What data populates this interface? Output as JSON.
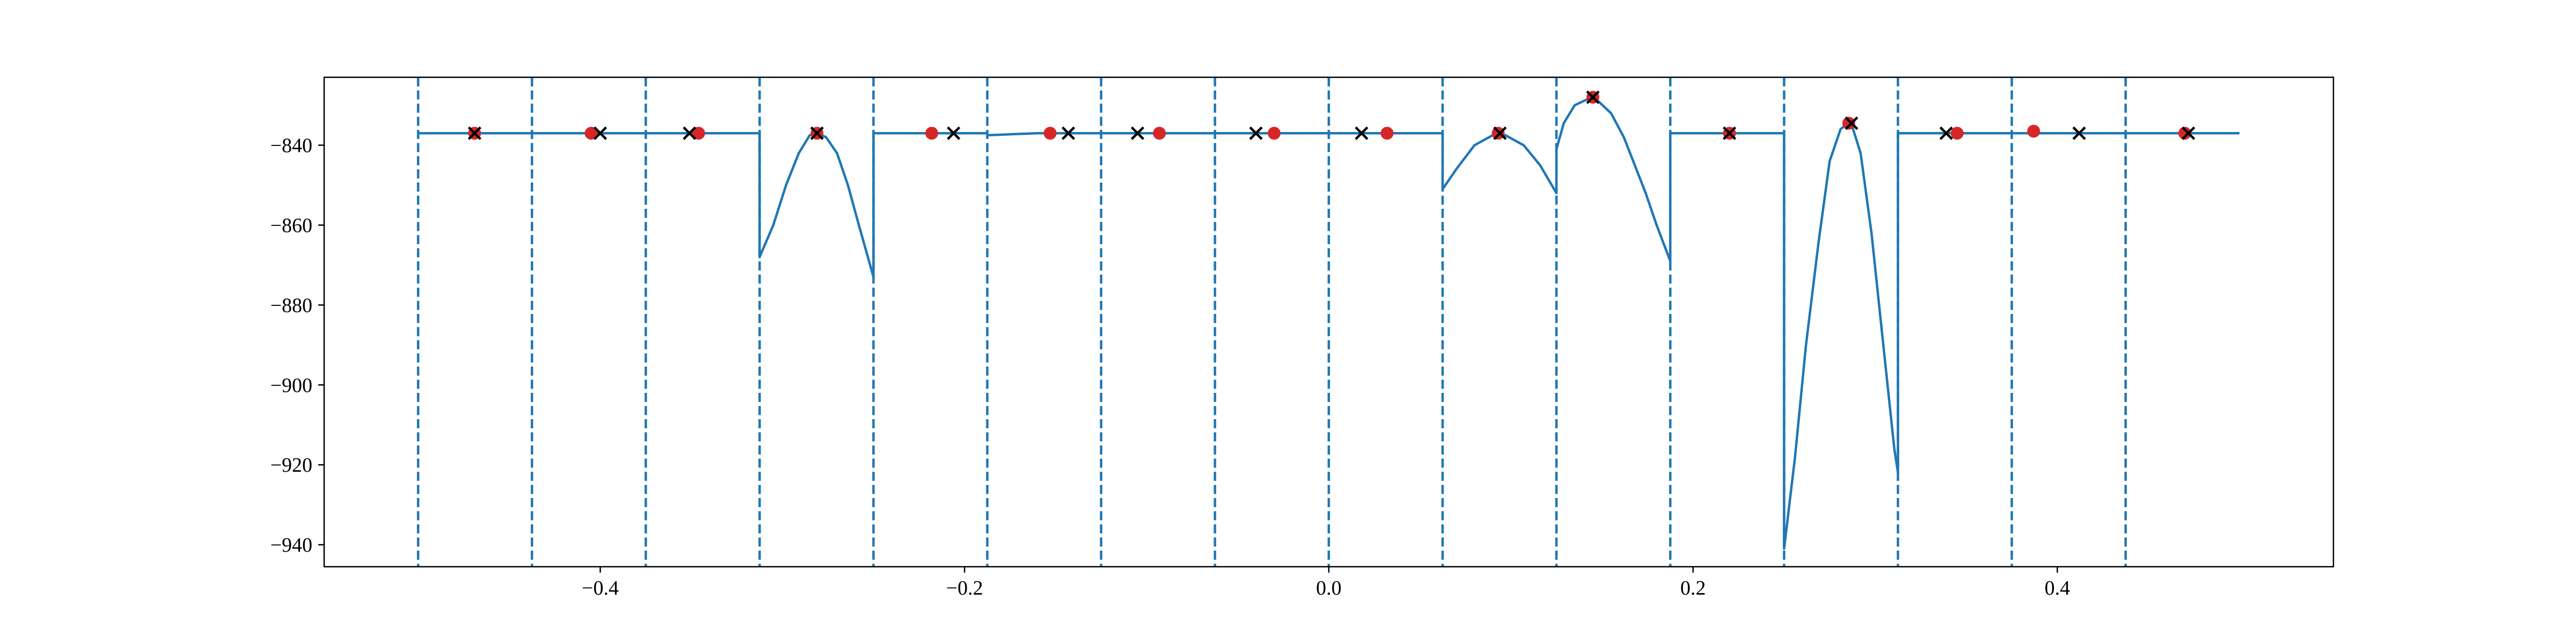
{
  "chart_data": {
    "type": "line",
    "title": "",
    "xlabel": "",
    "ylabel": "",
    "xlim": [
      -0.5516,
      0.5516
    ],
    "ylim": [
      -945.5,
      -823.0
    ],
    "x_ticks": [
      -0.4,
      -0.2,
      0.0,
      0.2,
      0.4
    ],
    "x_tick_labels": [
      "−0.4",
      "−0.2",
      "0.0",
      "0.2",
      "0.4"
    ],
    "y_ticks": [
      -840,
      -860,
      -880,
      -900,
      -920,
      -940
    ],
    "y_tick_labels": [
      "−840",
      "−860",
      "−880",
      "−900",
      "−920",
      "−940"
    ],
    "grid": false,
    "legend": "none",
    "colors": {
      "line": "#1f77b4",
      "red_points": "#d62728",
      "black_x": "#000000"
    },
    "boundaries": [
      -0.5,
      -0.4375,
      -0.375,
      -0.3125,
      -0.25,
      -0.1875,
      -0.125,
      -0.0625,
      0.0,
      0.0625,
      0.125,
      0.1875,
      0.25,
      0.3125,
      0.375,
      0.4375
    ],
    "series": [
      {
        "type": "line",
        "segments": [
          [
            [
              -0.5,
              -837
            ],
            [
              -0.4375,
              -837
            ]
          ],
          [
            [
              -0.4375,
              -837
            ],
            [
              -0.375,
              -837
            ]
          ],
          [
            [
              -0.375,
              -837
            ],
            [
              -0.3125,
              -837
            ]
          ],
          [
            [
              -0.3125,
              -868
            ],
            [
              -0.305,
              -860
            ],
            [
              -0.298,
              -850
            ],
            [
              -0.291,
              -842
            ],
            [
              -0.285,
              -837.5
            ],
            [
              -0.281,
              -837
            ],
            [
              -0.276,
              -838
            ],
            [
              -0.27,
              -842
            ],
            [
              -0.264,
              -850
            ],
            [
              -0.258,
              -860
            ],
            [
              -0.25,
              -873
            ]
          ],
          [
            [
              -0.25,
              -837
            ],
            [
              -0.1875,
              -837
            ]
          ],
          [
            [
              -0.1875,
              -837.5
            ],
            [
              -0.16,
              -837
            ],
            [
              -0.125,
              -837
            ]
          ],
          [
            [
              -0.125,
              -837
            ],
            [
              -0.0625,
              -837
            ]
          ],
          [
            [
              -0.0625,
              -837
            ],
            [
              0.0,
              -837
            ]
          ],
          [
            [
              0.0,
              -837
            ],
            [
              0.0625,
              -837
            ]
          ],
          [
            [
              0.0625,
              -851
            ],
            [
              0.07,
              -846
            ],
            [
              0.08,
              -840
            ],
            [
              0.09,
              -837.5
            ],
            [
              0.097,
              -837.5
            ],
            [
              0.107,
              -840
            ],
            [
              0.116,
              -845
            ],
            [
              0.125,
              -852
            ]
          ],
          [
            [
              0.125,
              -841
            ],
            [
              0.129,
              -834.5
            ],
            [
              0.135,
              -830
            ],
            [
              0.142,
              -828.5
            ],
            [
              0.148,
              -829
            ],
            [
              0.155,
              -832
            ],
            [
              0.162,
              -838
            ],
            [
              0.168,
              -845
            ],
            [
              0.174,
              -852
            ],
            [
              0.18,
              -860
            ],
            [
              0.185,
              -866
            ],
            [
              0.1875,
              -869
            ]
          ],
          [
            [
              0.1875,
              -837
            ],
            [
              0.25,
              -837
            ]
          ],
          [
            [
              0.25,
              -941
            ],
            [
              0.256,
              -918
            ],
            [
              0.262,
              -890
            ],
            [
              0.269,
              -864
            ],
            [
              0.275,
              -844
            ],
            [
              0.281,
              -836
            ],
            [
              0.2865,
              -834
            ],
            [
              0.292,
              -842
            ],
            [
              0.298,
              -862
            ],
            [
              0.304,
              -888
            ],
            [
              0.3105,
              -916
            ],
            [
              0.3125,
              -922
            ]
          ],
          [
            [
              0.3125,
              -837
            ],
            [
              0.375,
              -837
            ]
          ],
          [
            [
              0.375,
              -837
            ],
            [
              0.4375,
              -837
            ]
          ],
          [
            [
              0.4375,
              -837
            ],
            [
              0.5,
              -837
            ]
          ]
        ]
      },
      {
        "type": "scatter",
        "marker": "o",
        "points": [
          [
            -0.469,
            -837
          ],
          [
            -0.405,
            -837
          ],
          [
            -0.346,
            -837
          ],
          [
            -0.281,
            -837
          ],
          [
            -0.218,
            -837
          ],
          [
            -0.153,
            -837
          ],
          [
            -0.093,
            -837
          ],
          [
            -0.03,
            -837
          ],
          [
            0.032,
            -837
          ],
          [
            0.093,
            -837
          ],
          [
            0.145,
            -828
          ],
          [
            0.22,
            -837
          ],
          [
            0.2855,
            -834.5
          ],
          [
            0.345,
            -837
          ],
          [
            0.387,
            -836.5
          ],
          [
            0.47,
            -837
          ]
        ]
      },
      {
        "type": "scatter",
        "marker": "x",
        "points": [
          [
            -0.469,
            -837
          ],
          [
            -0.4,
            -837
          ],
          [
            -0.351,
            -837
          ],
          [
            -0.281,
            -837
          ],
          [
            -0.206,
            -837
          ],
          [
            -0.143,
            -837
          ],
          [
            -0.105,
            -837
          ],
          [
            -0.04,
            -837
          ],
          [
            0.018,
            -837
          ],
          [
            0.094,
            -837
          ],
          [
            0.145,
            -828
          ],
          [
            0.22,
            -837
          ],
          [
            0.287,
            -834.5
          ],
          [
            0.339,
            -837
          ],
          [
            0.412,
            -837
          ],
          [
            0.472,
            -837
          ]
        ]
      }
    ]
  }
}
